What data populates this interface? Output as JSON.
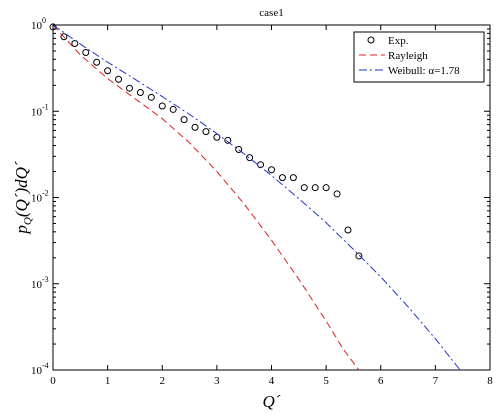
{
  "chart_data": {
    "type": "line",
    "title": "case1",
    "xlabel": "Q´",
    "ylabel": "p_Q(Q´)dQ´",
    "ylabel_parts": {
      "p": "p",
      "sub": "Q",
      "rest": "(Q´)dQ´"
    },
    "xlim": [
      0,
      8
    ],
    "ylim": [
      0.0001,
      1
    ],
    "yscale": "log",
    "grid": false,
    "legend_position": "top-right",
    "x_ticks": [
      0,
      1,
      2,
      3,
      4,
      5,
      6,
      7,
      8
    ],
    "y_ticks": [
      {
        "value": 0.0001,
        "base": "10",
        "exp": "-4"
      },
      {
        "value": 0.001,
        "base": "10",
        "exp": "-3"
      },
      {
        "value": 0.01,
        "base": "10",
        "exp": "-2"
      },
      {
        "value": 0.1,
        "base": "10",
        "exp": "-1"
      },
      {
        "value": 1,
        "base": "10",
        "exp": "0"
      }
    ],
    "series": [
      {
        "name": "Exp.",
        "kind": "markers",
        "marker": "circle",
        "color": "#000000",
        "x": [
          0.0,
          0.2,
          0.4,
          0.6,
          0.8,
          1.0,
          1.2,
          1.4,
          1.6,
          1.8,
          2.0,
          2.2,
          2.4,
          2.6,
          2.8,
          3.0,
          3.2,
          3.4,
          3.6,
          3.8,
          4.0,
          4.2,
          4.4,
          4.6,
          4.8,
          5.0,
          5.2,
          5.4,
          5.6
        ],
        "y": [
          0.95,
          0.73,
          0.61,
          0.48,
          0.37,
          0.295,
          0.235,
          0.185,
          0.165,
          0.145,
          0.115,
          0.105,
          0.08,
          0.065,
          0.058,
          0.05,
          0.046,
          0.036,
          0.029,
          0.024,
          0.021,
          0.017,
          0.017,
          0.013,
          0.013,
          0.013,
          0.011,
          0.0042,
          0.0021
        ]
      },
      {
        "name": "Rayleigh",
        "kind": "line",
        "dash": "7,4",
        "color": "#dd2222",
        "x": [
          0.0,
          0.5,
          1.0,
          1.5,
          2.0,
          2.5,
          3.0,
          3.5,
          4.0,
          4.5,
          5.0,
          5.3,
          5.6
        ],
        "y": [
          1.0,
          0.45,
          0.24,
          0.14,
          0.082,
          0.043,
          0.02,
          0.0084,
          0.0032,
          0.00113,
          0.00037,
          0.00018,
          0.0001
        ]
      },
      {
        "name": "Weibull: α=1.78",
        "kind": "line",
        "dash": "8,3,2,3",
        "color": "#2233cc",
        "x": [
          0.0,
          0.5,
          1.0,
          1.5,
          2.0,
          2.5,
          3.0,
          3.5,
          4.0,
          4.5,
          5.0,
          5.5,
          6.0,
          6.5,
          7.0,
          7.45
        ],
        "y": [
          1.0,
          0.6,
          0.37,
          0.235,
          0.148,
          0.092,
          0.055,
          0.032,
          0.018,
          0.0097,
          0.0051,
          0.0025,
          0.0012,
          0.00054,
          0.00023,
          0.0001
        ]
      }
    ]
  }
}
